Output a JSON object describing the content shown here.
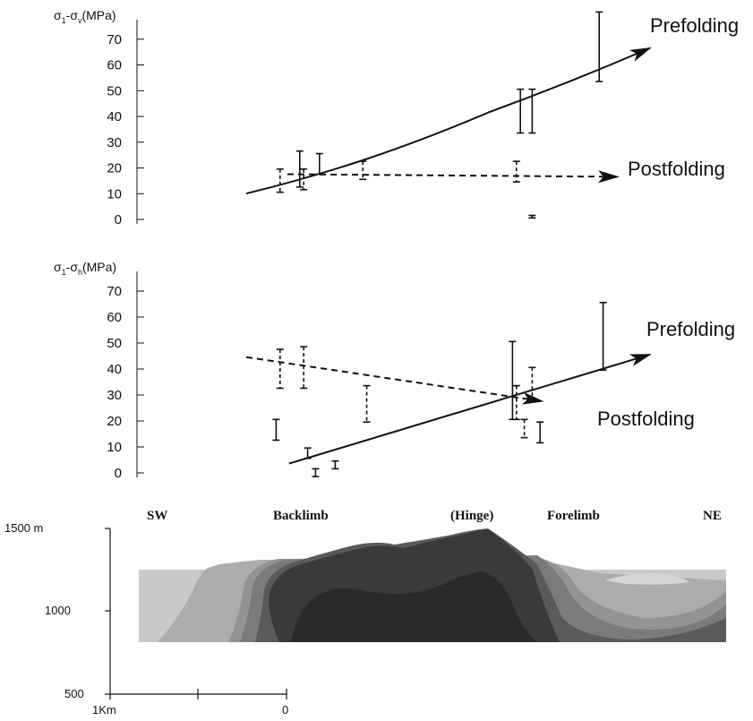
{
  "chart_data": [
    {
      "type": "line",
      "ylabel": "σ1-σv(MPa)",
      "ylabel_base": "σ",
      "ylabel_sub1": "1",
      "ylabel_mid": "-σ",
      "ylabel_sub2": "v",
      "ylabel_unit": "(MPa)",
      "ylim": [
        0,
        80
      ],
      "y_ticks": [
        "0",
        "10",
        "20",
        "30",
        "40",
        "50",
        "60",
        "70"
      ],
      "grid": false,
      "series": [
        {
          "name": "Prefolding",
          "style": "solid",
          "x": [
            0.0,
            0.3,
            0.6,
            1.0
          ],
          "y": [
            12.5,
            26,
            44,
            69
          ]
        },
        {
          "name": "Postfolding",
          "style": "dashed",
          "x": [
            0.1,
            1.0
          ],
          "y": [
            20,
            19
          ]
        }
      ],
      "error_bars": [
        {
          "style": "dashed",
          "x": 0.12,
          "low": 13,
          "high": 22
        },
        {
          "style": "solid",
          "x": 0.17,
          "low": 15,
          "high": 29
        },
        {
          "style": "dashed",
          "x": 0.18,
          "low": 14,
          "high": 22
        },
        {
          "style": "solid",
          "x": 0.22,
          "low": 20,
          "high": 28
        },
        {
          "style": "dashed",
          "x": 0.33,
          "low": 18,
          "high": 25
        },
        {
          "style": "dashed",
          "x": 0.72,
          "low": 17,
          "high": 25
        },
        {
          "style": "solid",
          "x": 0.73,
          "low": 36,
          "high": 53
        },
        {
          "style": "solid",
          "x": 0.76,
          "low": 36,
          "high": 53
        },
        {
          "style": "dashed",
          "x": 0.76,
          "low": 3,
          "high": 4
        },
        {
          "style": "solid",
          "x": 0.93,
          "low": 56,
          "high": 83
        }
      ]
    },
    {
      "type": "line",
      "ylabel": "σ1-σh(MPa)",
      "ylabel_base": "σ",
      "ylabel_sub1": "1",
      "ylabel_mid": "-σ",
      "ylabel_sub2": "h",
      "ylabel_unit": "(MPa)",
      "ylim": [
        0,
        80
      ],
      "y_ticks": [
        "0",
        "10",
        "20",
        "30",
        "40",
        "50",
        "60",
        "70"
      ],
      "grid": false,
      "series": [
        {
          "name": "Prefolding",
          "style": "solid",
          "x": [
            0.2,
            1.0
          ],
          "y": [
            6,
            48
          ]
        },
        {
          "name": "Postfolding",
          "style": "dashed",
          "x": [
            0.0,
            0.87
          ],
          "y": [
            47,
            30
          ]
        }
      ],
      "error_bars": [
        {
          "style": "dashed",
          "x": 0.12,
          "low": 35,
          "high": 50
        },
        {
          "style": "dashed",
          "x": 0.18,
          "low": 35,
          "high": 51
        },
        {
          "style": "solid",
          "x": 0.11,
          "low": 15,
          "high": 23
        },
        {
          "style": "solid",
          "x": 0.19,
          "low": 8,
          "high": 12
        },
        {
          "style": "solid",
          "x": 0.21,
          "low": 1,
          "high": 4
        },
        {
          "style": "solid",
          "x": 0.26,
          "low": 4,
          "high": 7
        },
        {
          "style": "dashed",
          "x": 0.34,
          "low": 22,
          "high": 36
        },
        {
          "style": "solid",
          "x": 0.71,
          "low": 23,
          "high": 53
        },
        {
          "style": "dashed",
          "x": 0.72,
          "low": 23,
          "high": 36
        },
        {
          "style": "dashed",
          "x": 0.74,
          "low": 16,
          "high": 23
        },
        {
          "style": "dashed",
          "x": 0.76,
          "low": 30,
          "high": 43
        },
        {
          "style": "solid",
          "x": 0.78,
          "low": 14,
          "high": 22
        },
        {
          "style": "solid",
          "x": 0.94,
          "low": 42,
          "high": 68
        }
      ]
    }
  ],
  "cross_section": {
    "labels": [
      "SW",
      "Backlimb",
      "(Hinge)",
      "Forelimb",
      "NE"
    ],
    "y_axis_ticks": [
      "1500 m",
      "1000",
      "500"
    ],
    "scale_labels": [
      "1Km",
      "0"
    ],
    "layer_colors": [
      "#c9c9c9",
      "#acacac",
      "#939393",
      "#7b7b7b",
      "#5a5a5a",
      "#3a3a3a",
      "#2a2a2a",
      "#d6d6d6"
    ]
  }
}
